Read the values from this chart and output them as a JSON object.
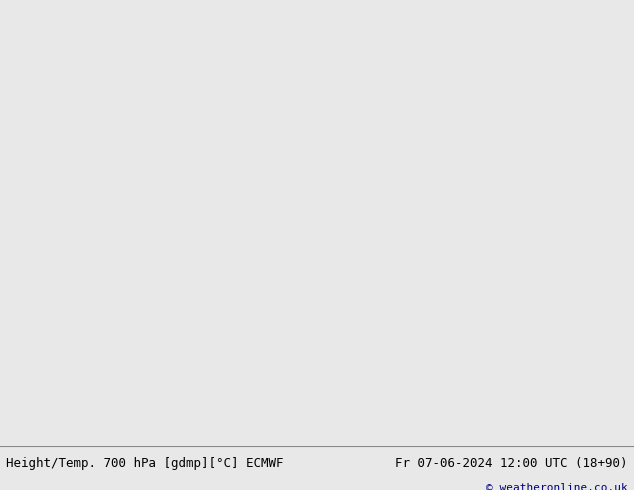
{
  "title_left": "Height/Temp. 700 hPa [gdmp][°C] ECMWF",
  "title_right": "Fr 07-06-2024 12:00 UTC (18+90)",
  "copyright": "© weatheronline.co.uk",
  "bg_ocean": "#d4d4d4",
  "bg_land": "#c8e8b0",
  "bg_land2": "#b0d898",
  "coast_color": "#888888",
  "border_color": "#888888",
  "fig_width": 6.34,
  "fig_height": 4.9,
  "dpi": 100,
  "bottom_text_color": "#000080",
  "title_fontsize": 9,
  "label_fontsize": 7,
  "height_color": "#000000",
  "temp_warm_color": "#cc6600",
  "temp_cold_color": "#cc0000",
  "zero_line_color": "#cc00cc",
  "frame_color": "#888888"
}
